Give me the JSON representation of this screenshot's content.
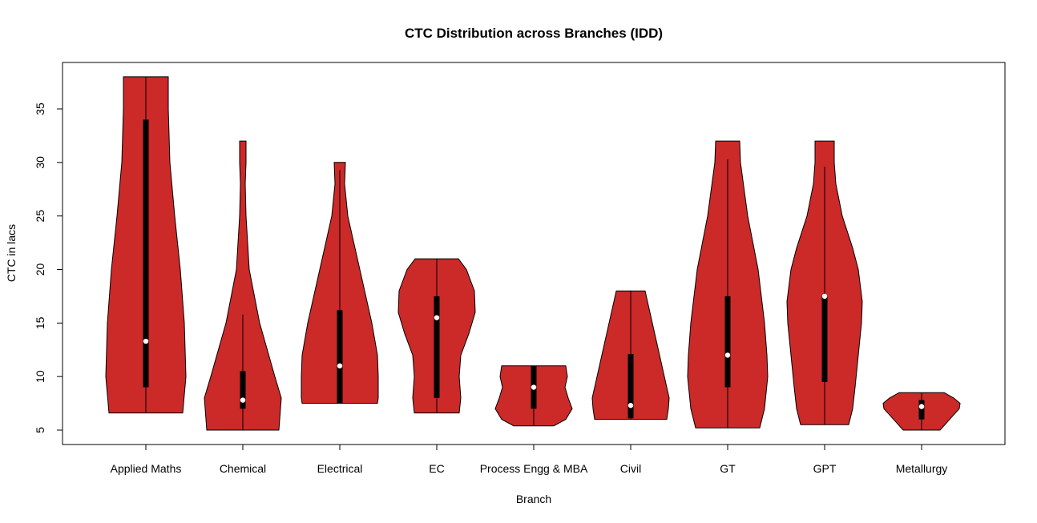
{
  "chart_data": {
    "type": "violin",
    "title": "CTC Distribution across Branches (IDD)",
    "xlabel": "Branch",
    "ylabel": "CTC in lacs",
    "ylim": [
      3.6,
      39.2
    ],
    "yticks": [
      5,
      10,
      15,
      20,
      25,
      30,
      35
    ],
    "grid": false,
    "fill_color": "#CC2929",
    "categories": [
      "Applied Maths",
      "Chemical",
      "Electrical",
      "EC",
      "Process Engg & MBA",
      "Civil",
      "GT",
      "GPT",
      "Metallurgy"
    ],
    "series": [
      {
        "min": 6.6,
        "max": 38,
        "q1": 9,
        "q3": 34,
        "median": 13.3,
        "whisker_low": 6.6,
        "whisker_high": 38,
        "density": [
          [
            38,
            0.56
          ],
          [
            35,
            0.56
          ],
          [
            30,
            0.6
          ],
          [
            25,
            0.72
          ],
          [
            20,
            0.86
          ],
          [
            15,
            0.96
          ],
          [
            10,
            1.0
          ],
          [
            6.6,
            0.92
          ]
        ]
      },
      {
        "min": 5,
        "max": 32,
        "q1": 7,
        "q3": 10.5,
        "median": 7.8,
        "whisker_low": 5,
        "whisker_high": 15.8,
        "density": [
          [
            32,
            0.08
          ],
          [
            30,
            0.08
          ],
          [
            28,
            0.06
          ],
          [
            25,
            0.08
          ],
          [
            20,
            0.16
          ],
          [
            15,
            0.42
          ],
          [
            10,
            0.8
          ],
          [
            8,
            0.96
          ],
          [
            6,
            0.92
          ],
          [
            5,
            0.9
          ]
        ]
      },
      {
        "min": 7.5,
        "max": 30,
        "q1": 7.5,
        "q3": 16.2,
        "median": 11,
        "whisker_low": 7.5,
        "whisker_high": 29.3,
        "density": [
          [
            30,
            0.14
          ],
          [
            28,
            0.12
          ],
          [
            25,
            0.2
          ],
          [
            20,
            0.5
          ],
          [
            15,
            0.8
          ],
          [
            12,
            0.94
          ],
          [
            10,
            0.96
          ],
          [
            8,
            0.96
          ],
          [
            7.5,
            0.94
          ]
        ]
      },
      {
        "min": 6.6,
        "max": 21,
        "q1": 8,
        "q3": 17.5,
        "median": 15.5,
        "whisker_low": 6.6,
        "whisker_high": 21,
        "density": [
          [
            21,
            0.54
          ],
          [
            20,
            0.74
          ],
          [
            18,
            0.94
          ],
          [
            16,
            0.96
          ],
          [
            14,
            0.8
          ],
          [
            12,
            0.6
          ],
          [
            10,
            0.56
          ],
          [
            8,
            0.6
          ],
          [
            6.6,
            0.56
          ]
        ]
      },
      {
        "min": 5.4,
        "max": 11,
        "q1": 7,
        "q3": 11,
        "median": 9,
        "whisker_low": 5.4,
        "whisker_high": 11,
        "density": [
          [
            11,
            0.8
          ],
          [
            10,
            0.84
          ],
          [
            9,
            0.78
          ],
          [
            8,
            0.86
          ],
          [
            7,
            0.96
          ],
          [
            6,
            0.8
          ],
          [
            5.4,
            0.5
          ]
        ]
      },
      {
        "min": 6,
        "max": 18,
        "q1": 6.1,
        "q3": 12.1,
        "median": 7.3,
        "whisker_low": 6,
        "whisker_high": 18,
        "density": [
          [
            18,
            0.36
          ],
          [
            16,
            0.48
          ],
          [
            14,
            0.6
          ],
          [
            12,
            0.72
          ],
          [
            10,
            0.84
          ],
          [
            8,
            0.96
          ],
          [
            7,
            0.94
          ],
          [
            6,
            0.9
          ]
        ]
      },
      {
        "min": 5.2,
        "max": 32,
        "q1": 9,
        "q3": 17.5,
        "median": 12,
        "whisker_low": 5.2,
        "whisker_high": 30.3,
        "density": [
          [
            32,
            0.3
          ],
          [
            30,
            0.32
          ],
          [
            25,
            0.5
          ],
          [
            20,
            0.76
          ],
          [
            15,
            0.92
          ],
          [
            12,
            0.98
          ],
          [
            10,
            1.0
          ],
          [
            7,
            0.92
          ],
          [
            5.2,
            0.8
          ]
        ]
      },
      {
        "min": 5.5,
        "max": 32,
        "q1": 9.5,
        "q3": 17.5,
        "median": 17.5,
        "whisker_low": 5.5,
        "whisker_high": 29.6,
        "density": [
          [
            32,
            0.24
          ],
          [
            30,
            0.24
          ],
          [
            28,
            0.28
          ],
          [
            25,
            0.44
          ],
          [
            22,
            0.7
          ],
          [
            20,
            0.84
          ],
          [
            17,
            0.94
          ],
          [
            15,
            0.92
          ],
          [
            12,
            0.84
          ],
          [
            9,
            0.76
          ],
          [
            7,
            0.7
          ],
          [
            5.5,
            0.6
          ]
        ]
      },
      {
        "min": 5,
        "max": 8.5,
        "q1": 6,
        "q3": 7.8,
        "median": 7.2,
        "whisker_low": 5,
        "whisker_high": 8.5,
        "density": [
          [
            8.5,
            0.56
          ],
          [
            8,
            0.8
          ],
          [
            7.5,
            0.96
          ],
          [
            7,
            0.94
          ],
          [
            6,
            0.7
          ],
          [
            5,
            0.46
          ]
        ]
      }
    ]
  }
}
